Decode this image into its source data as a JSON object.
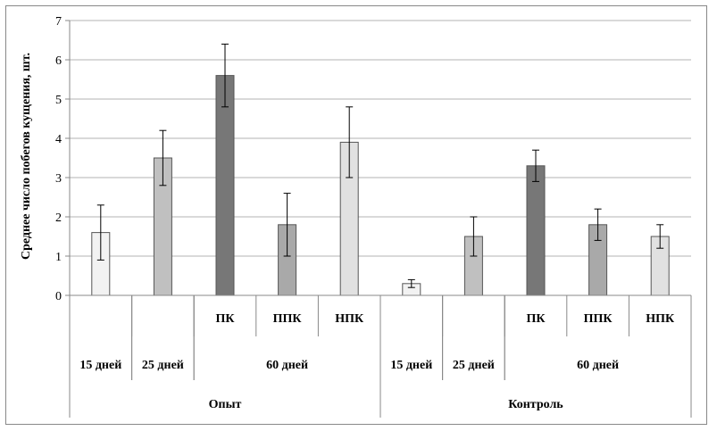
{
  "chart_data": {
    "type": "bar",
    "title": "",
    "xlabel": "",
    "ylabel": "Среднее число побегов кущения, шт.",
    "ylim": [
      0,
      7
    ],
    "yticks": [
      "0",
      "1",
      "2",
      "3",
      "4",
      "5",
      "6",
      "7"
    ],
    "grid": true,
    "legend": "none",
    "groups": [
      {
        "label": "Опыт",
        "subgroups": [
          "15 дней",
          "25 дней",
          "60 дней"
        ]
      },
      {
        "label": "Контроль",
        "subgroups": [
          "15 дней",
          "25 дней",
          "60 дней"
        ]
      }
    ],
    "categories": [
      {
        "label": "",
        "period": "15 дней",
        "group": "Опыт",
        "value": 1.6,
        "err": 0.7,
        "fill": "#f2f2f2"
      },
      {
        "label": "",
        "period": "25 дней",
        "group": "Опыт",
        "value": 3.5,
        "err": 0.7,
        "fill": "#c0c0c0"
      },
      {
        "label": "ПК",
        "period": "60 дней",
        "group": "Опыт",
        "value": 5.6,
        "err": 0.8,
        "fill": "#777777"
      },
      {
        "label": "ППК",
        "period": "60 дней",
        "group": "Опыт",
        "value": 1.8,
        "err": 0.8,
        "fill": "#a9a9a9"
      },
      {
        "label": "НПК",
        "period": "60 дней",
        "group": "Опыт",
        "value": 3.9,
        "err": 0.9,
        "fill": "#e1e1e1"
      },
      {
        "label": "",
        "period": "15 дней",
        "group": "Контроль",
        "value": 0.3,
        "err": 0.1,
        "fill": "#f2f2f2"
      },
      {
        "label": "",
        "period": "25 дней",
        "group": "Контроль",
        "value": 1.5,
        "err": 0.5,
        "fill": "#c0c0c0"
      },
      {
        "label": "ПК",
        "period": "60 дней",
        "group": "Контроль",
        "value": 3.3,
        "err": 0.4,
        "fill": "#777777"
      },
      {
        "label": "ППК",
        "period": "60 дней",
        "group": "Контроль",
        "value": 1.8,
        "err": 0.4,
        "fill": "#a9a9a9"
      },
      {
        "label": "НПК",
        "period": "60 дней",
        "group": "Контроль",
        "value": 1.5,
        "err": 0.3,
        "fill": "#e1e1e1"
      }
    ]
  }
}
